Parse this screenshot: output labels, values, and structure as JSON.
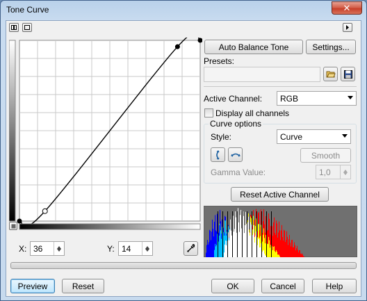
{
  "window": {
    "title": "Tone Curve",
    "close_glyph": "✕"
  },
  "toolbar": {
    "left_icons": [
      "layout-split-icon",
      "layout-single-icon"
    ],
    "right_icon": "play-right-icon"
  },
  "curve": {
    "grid_divisions": 10,
    "points": [
      [
        0,
        0
      ],
      [
        36,
        14
      ],
      [
        223,
        246
      ],
      [
        255,
        255
      ]
    ],
    "selected_point": [
      36,
      14
    ],
    "curve_color": "#000000"
  },
  "coords": {
    "x_label": "X:",
    "x_value": "36",
    "y_label": "Y:",
    "y_value": "14"
  },
  "right": {
    "auto_balance_label": "Auto Balance Tone",
    "settings_label": "Settings...",
    "presets_label": "Presets:",
    "presets_value": "",
    "active_channel_label": "Active Channel:",
    "active_channel_value": "RGB",
    "display_all_label": "Display all channels",
    "display_all_checked": false,
    "curve_options_label": "Curve options",
    "style_label": "Style:",
    "style_value": "Curve",
    "smooth_label": "Smooth",
    "gamma_label": "Gamma Value:",
    "gamma_value": "1,0",
    "reset_channel_label": "Reset Active Channel"
  },
  "footer": {
    "preview_label": "Preview",
    "reset_label": "Reset",
    "ok_label": "OK",
    "cancel_label": "Cancel",
    "help_label": "Help"
  },
  "colors": {
    "accent_focus": "#3c7fb1",
    "histogram_bg": "#707070"
  }
}
